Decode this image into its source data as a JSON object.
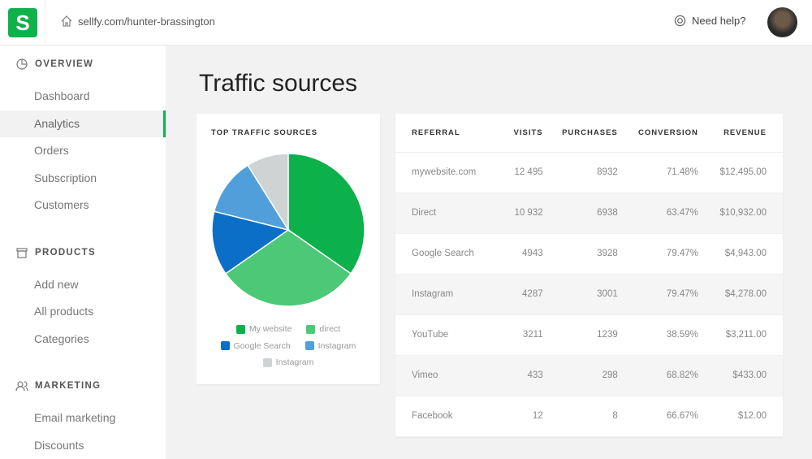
{
  "header": {
    "logo": "S",
    "url": "sellfy.com/hunter-brassington",
    "help": "Need help?"
  },
  "sidebar": {
    "sections": [
      {
        "title": "OVERVIEW",
        "items": [
          "Dashboard",
          "Analytics",
          "Orders",
          "Subscription",
          "Customers"
        ]
      },
      {
        "title": "PRODUCTS",
        "items": [
          "Add new",
          "All products",
          "Categories"
        ]
      },
      {
        "title": "MARKETING",
        "items": [
          "Email marketing",
          "Discounts"
        ]
      }
    ],
    "active": "Analytics"
  },
  "page": {
    "title": "Traffic sources"
  },
  "chart_data": {
    "type": "pie",
    "title": "TOP TRAFFIC SOURCES",
    "labels": [
      "My website",
      "direct",
      "Google Search",
      "Instagram",
      "Instagram"
    ],
    "values": [
      34.7,
      30.6,
      13.6,
      12.2,
      8.9
    ],
    "colors": [
      "#0db14b",
      "#4cc877",
      "#0c6fc7",
      "#519fda",
      "#d0d3d4"
    ],
    "legend": "bottom"
  },
  "table": {
    "headers": [
      "REFERRAL",
      "VISITS",
      "PURCHASES",
      "CONVERSION",
      "REVENUE"
    ],
    "rows": [
      [
        "mywebsite.com",
        "12 495",
        "8932",
        "71.48%",
        "$12,495.00"
      ],
      [
        "Direct",
        "10 932",
        "6938",
        "63.47%",
        "$10,932.00"
      ],
      [
        "Google Search",
        "4943",
        "3928",
        "79.47%",
        "$4,943.00"
      ],
      [
        "Instagram",
        "4287",
        "3001",
        "79.47%",
        "$4,278.00"
      ],
      [
        "YouTube",
        "3211",
        "1239",
        "38.59%",
        "$3,211.00"
      ],
      [
        "Vimeo",
        "433",
        "298",
        "68.82%",
        "$433.00"
      ],
      [
        "Facebook",
        "12",
        "8",
        "66.67%",
        "$12.00"
      ]
    ]
  }
}
